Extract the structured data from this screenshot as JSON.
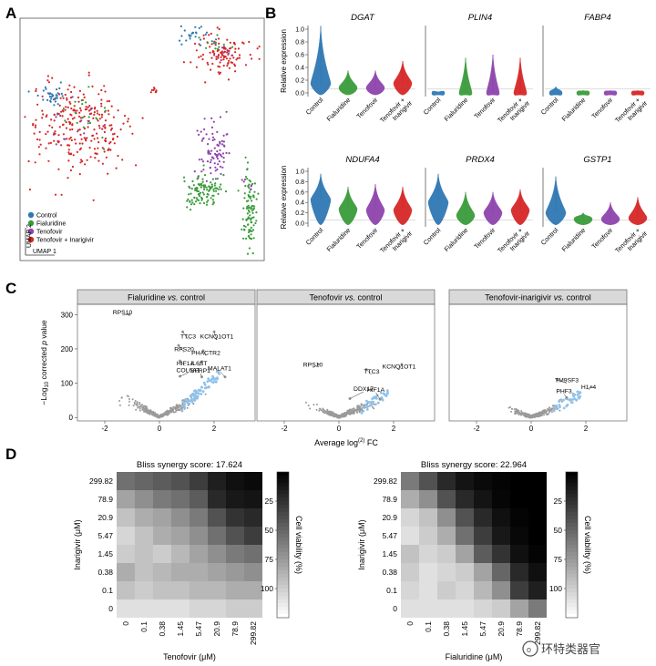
{
  "panels": {
    "A": "A",
    "B": "B",
    "C": "C",
    "D": "D"
  },
  "colors": {
    "control": "#2f78b4",
    "fialuridine": "#3a9b3a",
    "tenofovir": "#8e44ad",
    "tenofovir_inarigivir": "#d62728",
    "highlight": "#8fc1ea",
    "grey": "#9a9a9a"
  },
  "watermark": "环特类器官",
  "chart_data": [
    {
      "panel": "A",
      "type": "scatter",
      "xlabel": "UMAP 1",
      "ylabel": "UMAP 2",
      "legend": {
        "placement": "bottom-left",
        "entries": [
          "Control",
          "Fialuridine",
          "Tenofovir",
          "Tenofovir + Inarigivir"
        ]
      },
      "clusters": [
        {
          "group": "Tenofovir + Inarigivir",
          "cx": 0.83,
          "cy": 0.86,
          "sx": 0.06,
          "sy": 0.045,
          "n": 110
        },
        {
          "group": "Control",
          "cx": 0.72,
          "cy": 0.93,
          "sx": 0.03,
          "sy": 0.02,
          "n": 25
        },
        {
          "group": "Fialuridine",
          "cx": 0.82,
          "cy": 0.88,
          "sx": 0.04,
          "sy": 0.03,
          "n": 12
        },
        {
          "group": "Tenofovir",
          "cx": 0.84,
          "cy": 0.85,
          "sx": 0.04,
          "sy": 0.03,
          "n": 8
        },
        {
          "group": "Tenofovir + Inarigivir",
          "cx": 0.23,
          "cy": 0.55,
          "sx": 0.1,
          "sy": 0.09,
          "n": 260
        },
        {
          "group": "Control",
          "cx": 0.14,
          "cy": 0.68,
          "sx": 0.03,
          "sy": 0.025,
          "n": 35
        },
        {
          "group": "Fialuridine",
          "cx": 0.27,
          "cy": 0.62,
          "sx": 0.05,
          "sy": 0.05,
          "n": 22
        },
        {
          "group": "Tenofovir",
          "cx": 0.22,
          "cy": 0.55,
          "sx": 0.05,
          "sy": 0.05,
          "n": 12
        },
        {
          "group": "Tenofovir + Inarigivir",
          "cx": 0.55,
          "cy": 0.7,
          "sx": 0.008,
          "sy": 0.01,
          "n": 10
        },
        {
          "group": "Tenofovir",
          "cx": 0.79,
          "cy": 0.46,
          "sx": 0.03,
          "sy": 0.06,
          "n": 90
        },
        {
          "group": "Fialuridine",
          "cx": 0.75,
          "cy": 0.29,
          "sx": 0.045,
          "sy": 0.035,
          "n": 110
        },
        {
          "group": "Fialuridine",
          "cx": 0.94,
          "cy": 0.2,
          "sx": 0.012,
          "sy": 0.09,
          "n": 95
        },
        {
          "group": "Tenofovir",
          "cx": 0.93,
          "cy": 0.3,
          "sx": 0.015,
          "sy": 0.02,
          "n": 6
        }
      ]
    },
    {
      "panel": "B",
      "type": "violin",
      "ylabel": "Relative expression",
      "yticks": [
        "1.0",
        "0.8",
        "0.6",
        "0.4",
        "0.2",
        "0.0"
      ],
      "ylim": [
        0,
        1
      ],
      "categories": [
        "Control",
        "Fialuridine",
        "Tenofovir",
        "Tenofovir + Inarigivir"
      ],
      "category_lines": [
        [
          "Control"
        ],
        [
          "Fialuridine"
        ],
        [
          "Tenofovir"
        ],
        [
          "Tenofovir +",
          "Inarigivir"
        ]
      ],
      "genes": [
        {
          "name": "DGAT",
          "medians": [
            0.15,
            0.08,
            0.08,
            0.15
          ],
          "maxima": [
            1.05,
            0.35,
            0.35,
            0.5
          ]
        },
        {
          "name": "PLIN4",
          "medians": [
            0.0,
            0.0,
            0.0,
            0.0
          ],
          "maxima": [
            0.02,
            0.55,
            0.6,
            0.55
          ]
        },
        {
          "name": "FABP4",
          "medians": [
            0.0,
            0.0,
            0.0,
            0.0
          ],
          "maxima": [
            0.1,
            0.04,
            0.04,
            0.04
          ]
        },
        {
          "name": "NDUFA4",
          "medians": [
            0.45,
            0.27,
            0.25,
            0.25
          ],
          "maxima": [
            0.95,
            0.7,
            0.75,
            0.7
          ]
        },
        {
          "name": "PRDX4",
          "medians": [
            0.4,
            0.15,
            0.2,
            0.25
          ],
          "maxima": [
            0.95,
            0.6,
            0.6,
            0.65
          ]
        },
        {
          "name": "GSTP1",
          "medians": [
            0.2,
            0.08,
            0.08,
            0.1
          ],
          "maxima": [
            0.9,
            0.2,
            0.4,
            0.5
          ]
        }
      ]
    },
    {
      "panel": "C",
      "type": "scatter",
      "xlabel": "Average log(2) FC",
      "xlabel_main": "Average log",
      "xlabel_sup": "(2)",
      "xlabel_end": " FC",
      "ylabel_prefix": "−Log",
      "ylabel_sub": "10",
      "ylabel_suffix": " corrected p value",
      "xlim": [
        -3,
        3.5
      ],
      "ylim": [
        -10,
        330
      ],
      "yticks": [
        0,
        100,
        200,
        300
      ],
      "plots": [
        {
          "title": "Fialuridine vs. control",
          "title_a": "Fialuridine ",
          "title_vs": "vs.",
          "title_b": " control",
          "xticks": [
            -2,
            0,
            2
          ],
          "labels": [
            {
              "text": "RPS10",
              "x": -1.1,
              "y": 300,
              "lx": -1.35,
              "ly": 298
            },
            {
              "text": "TTC3",
              "x": 0.85,
              "y": 250,
              "lx": 1.05,
              "ly": 228
            },
            {
              "text": "KCNQ1OT1",
              "x": 2.0,
              "y": 250,
              "lx": 2.1,
              "ly": 228
            },
            {
              "text": "RPS20",
              "x": 0.7,
              "y": 210,
              "lx": 0.9,
              "ly": 190
            },
            {
              "text": "PHACTR2",
              "x": 1.6,
              "y": 195,
              "lx": 1.7,
              "ly": 180
            },
            {
              "text": "HIF1A",
              "x": 0.75,
              "y": 165,
              "lx": 0.95,
              "ly": 150
            },
            {
              "text": "IL6ST",
              "x": 1.55,
              "y": 163,
              "lx": 1.45,
              "ly": 150
            },
            {
              "text": "COL6A1",
              "x": 0.75,
              "y": 120,
              "lx": 1.05,
              "ly": 130
            },
            {
              "text": "SFRP1",
              "x": 1.55,
              "y": 118,
              "lx": 1.5,
              "ly": 128
            },
            {
              "text": "MALAT1",
              "x": 2.4,
              "y": 118,
              "lx": 2.2,
              "ly": 135
            }
          ]
        },
        {
          "title": "Tenofovir vs. control",
          "title_a": "Tenofovir ",
          "title_vs": "vs.",
          "title_b": " control",
          "xticks": [
            -2,
            0,
            2
          ],
          "labels": [
            {
              "text": "RPS10",
              "x": -0.75,
              "y": 155,
              "lx": -0.95,
              "ly": 145
            },
            {
              "text": "TTC3",
              "x": 1.0,
              "y": 140,
              "lx": 1.2,
              "ly": 125
            },
            {
              "text": "KCNQ1OT1",
              "x": 2.3,
              "y": 155,
              "lx": 2.2,
              "ly": 140
            },
            {
              "text": "DDX17",
              "x": 0.4,
              "y": 55,
              "lx": 0.9,
              "ly": 75
            },
            {
              "text": "HIF1A",
              "x": 1.5,
              "y": 53,
              "lx": 1.35,
              "ly": 73
            }
          ]
        },
        {
          "title": "Tenofovir-inarigivir vs. control",
          "title_a": "Tenofovir-inarigivir ",
          "title_vs": "vs.",
          "title_b": " control",
          "xticks": [
            -2,
            0,
            2
          ],
          "labels": [
            {
              "text": "TM9SF3",
              "x": 0.95,
              "y": 110,
              "lx": 1.3,
              "ly": 100
            },
            {
              "text": "H1–4",
              "x": 2.2,
              "y": 90,
              "lx": 2.1,
              "ly": 80
            },
            {
              "text": "PHF3",
              "x": 1.3,
              "y": 58,
              "lx": 1.2,
              "ly": 68
            }
          ]
        }
      ]
    },
    {
      "panel": "D",
      "type": "heatmap",
      "ylabel": "Inarigivir (μM)",
      "ylabels": [
        "299.82",
        "78.9",
        "20.9",
        "5.47",
        "1.45",
        "0.38",
        "0.1",
        "0"
      ],
      "colorbar": {
        "label": "Cell viability (%)",
        "ticks": [
          "25",
          "50",
          "75",
          "100"
        ],
        "range": [
          0,
          125
        ]
      },
      "maps": [
        {
          "title": "Bliss synergy score: 17.624",
          "xlabel": "Tenofovir (μM)",
          "xlabels": [
            "0",
            "0.1",
            "0.38",
            "1.45",
            "5.47",
            "20.9",
            "78.9",
            "299.82"
          ],
          "values": [
            [
              55,
              50,
              45,
              40,
              30,
              15,
              8,
              5
            ],
            [
              80,
              70,
              60,
              55,
              45,
              20,
              12,
              10
            ],
            [
              95,
              85,
              80,
              70,
              60,
              40,
              25,
              20
            ],
            [
              105,
              95,
              85,
              80,
              70,
              55,
              40,
              30
            ],
            [
              100,
              95,
              100,
              90,
              80,
              70,
              60,
              55
            ],
            [
              85,
              95,
              90,
              85,
              85,
              80,
              75,
              70
            ],
            [
              95,
              100,
              95,
              95,
              90,
              90,
              85,
              85
            ],
            [
              110,
              110,
              110,
              110,
              105,
              105,
              100,
              100
            ]
          ]
        },
        {
          "title": "Bliss synergy score: 22.964",
          "xlabel": "Fialuridine (μM)",
          "xlabels": [
            "0",
            "0.1",
            "0.38",
            "1.45",
            "5.47",
            "20.9",
            "78.9",
            "299.82"
          ],
          "values": [
            [
              60,
              40,
              20,
              10,
              5,
              2,
              0,
              0
            ],
            [
              85,
              70,
              40,
              20,
              10,
              3,
              0,
              0
            ],
            [
              105,
              95,
              70,
              40,
              20,
              8,
              2,
              0
            ],
            [
              110,
              100,
              85,
              55,
              30,
              12,
              4,
              0
            ],
            [
              95,
              105,
              100,
              80,
              45,
              25,
              8,
              2
            ],
            [
              100,
              110,
              105,
              100,
              80,
              50,
              20,
              8
            ],
            [
              105,
              110,
              100,
              105,
              90,
              70,
              30,
              15
            ],
            [
              110,
              110,
              110,
              110,
              105,
              100,
              80,
              60
            ]
          ]
        }
      ]
    }
  ]
}
